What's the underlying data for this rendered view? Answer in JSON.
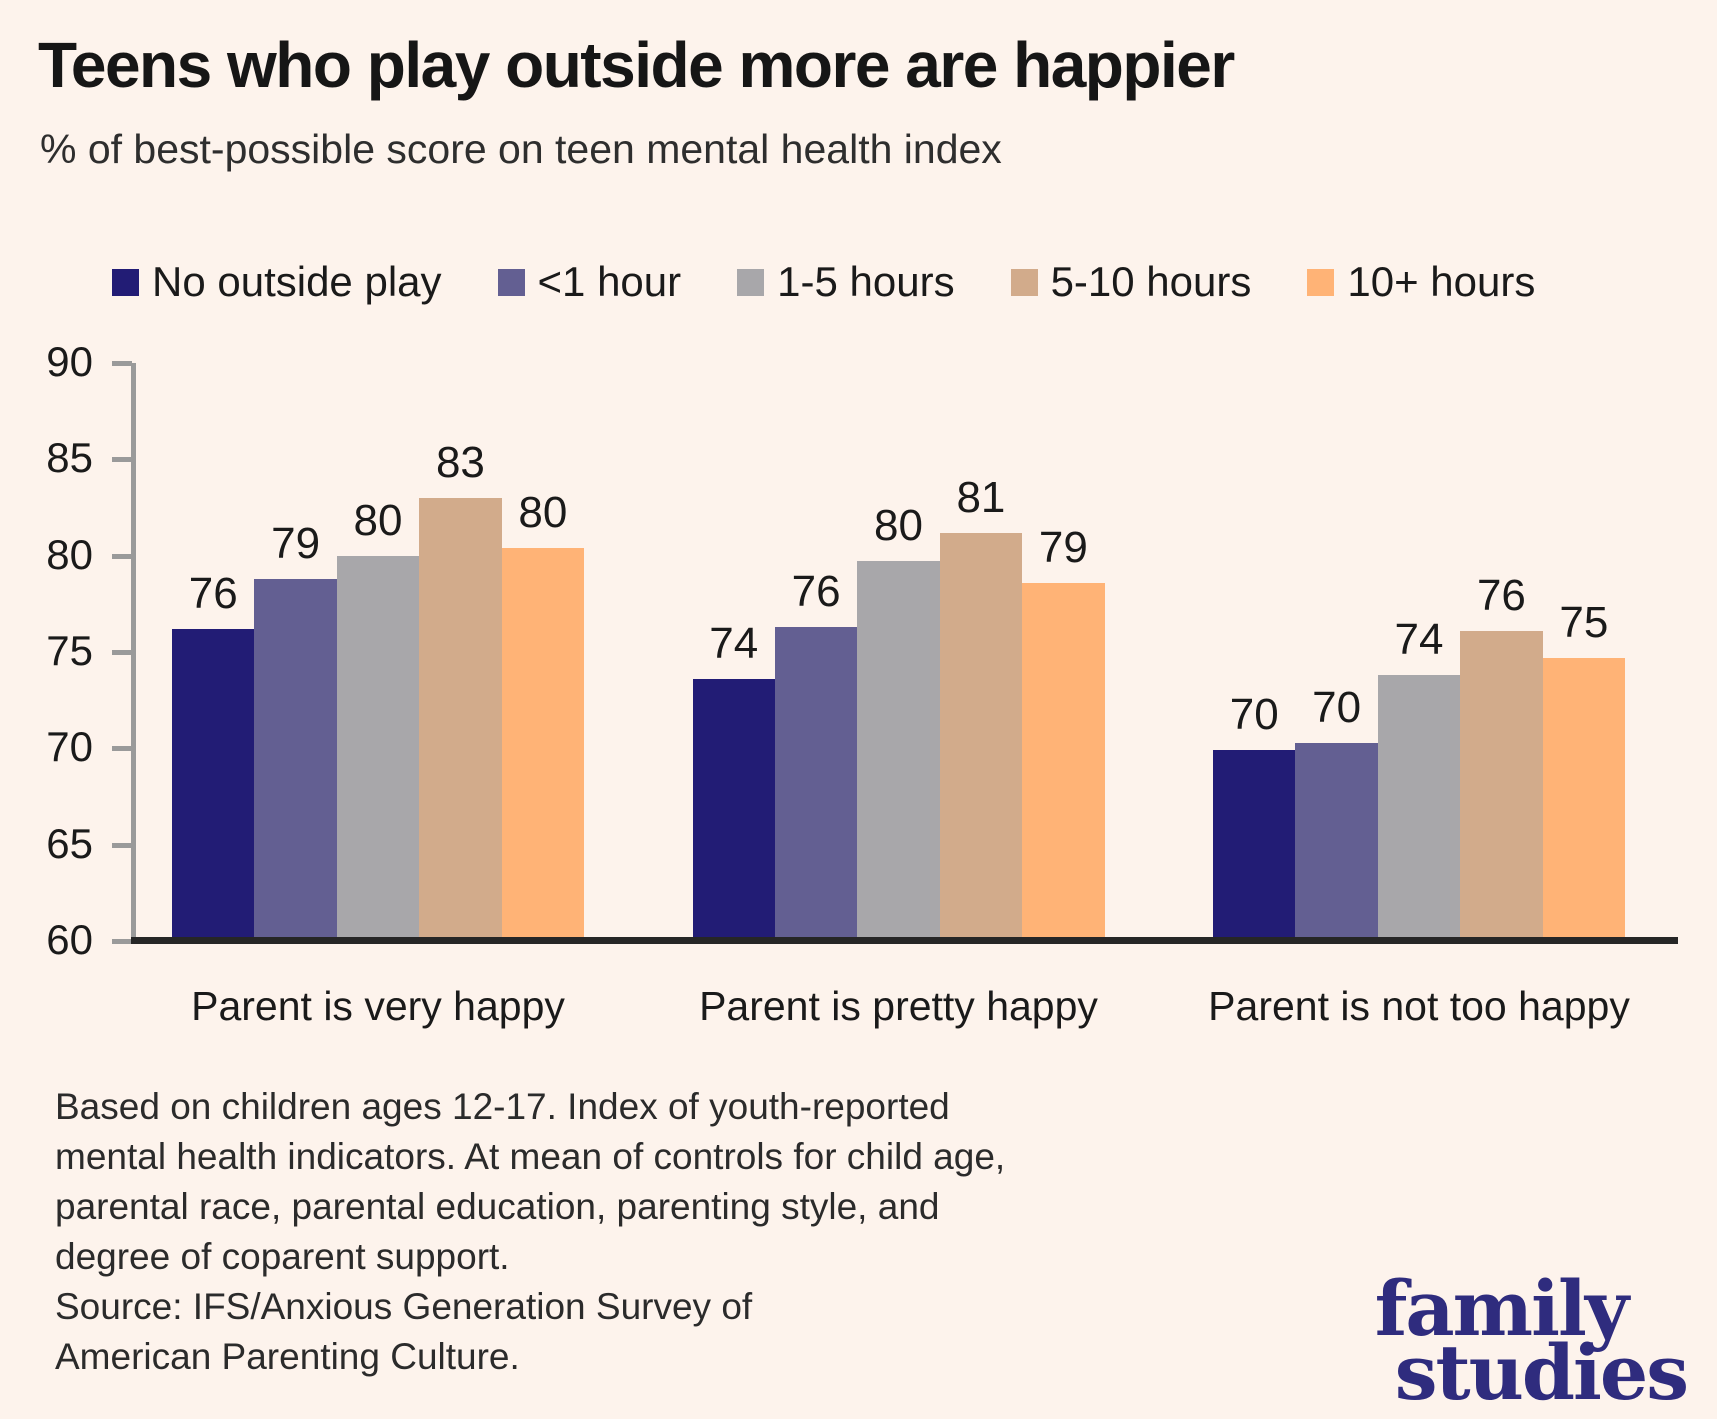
{
  "page": {
    "background_color": "#fdf3ec",
    "text_color": "#1a1a1a"
  },
  "header": {
    "title": "Teens who play outside more are happier",
    "subtitle": "% of best-possible score on teen mental health index"
  },
  "chart_data": {
    "type": "bar",
    "title": "Teens who play outside more are happier",
    "subtitle": "% of best-possible score on teen mental health index",
    "categories": [
      "Parent is very happy",
      "Parent is pretty happy",
      "Parent is not too happy"
    ],
    "series": [
      {
        "name": "No outside play",
        "color": "#221c75",
        "values": [
          76,
          74,
          70
        ],
        "values_precise": [
          76.2,
          73.6,
          69.9
        ]
      },
      {
        "name": "<1 hour",
        "color": "#635f92",
        "values": [
          79,
          76,
          70
        ],
        "values_precise": [
          78.8,
          76.3,
          70.3
        ]
      },
      {
        "name": "1-5 hours",
        "color": "#a8a7aa",
        "values": [
          80,
          80,
          74
        ],
        "values_precise": [
          80.0,
          79.7,
          73.8
        ]
      },
      {
        "name": "5-10 hours",
        "color": "#d2ab8b",
        "values": [
          83,
          81,
          76
        ],
        "values_precise": [
          83.0,
          81.2,
          76.1
        ]
      },
      {
        "name": "10+ hours",
        "color": "#ffb376",
        "values": [
          80,
          79,
          75
        ],
        "values_precise": [
          80.4,
          78.6,
          74.7
        ]
      }
    ],
    "y_axis": {
      "min": 60,
      "max": 90,
      "tick_step": 5,
      "ticks": [
        90,
        85,
        80,
        75,
        70,
        65,
        60
      ]
    },
    "legend_position": "top",
    "grid": false,
    "bar_value_labels": true,
    "axis_color": "#9a9a9a",
    "baseline_color": "#262626"
  },
  "footnote": {
    "lines": [
      "Based on children ages 12-17. Index of youth-reported",
      "mental health indicators. At mean of controls for child age,",
      "parental race, parental education, parenting style, and",
      "degree of coparent support.",
      "Source: IFS/Anxious Generation Survey of",
      "American Parenting Culture."
    ]
  },
  "logo": {
    "line1": "family",
    "line2": "studies",
    "color": "#2f2c7e"
  }
}
